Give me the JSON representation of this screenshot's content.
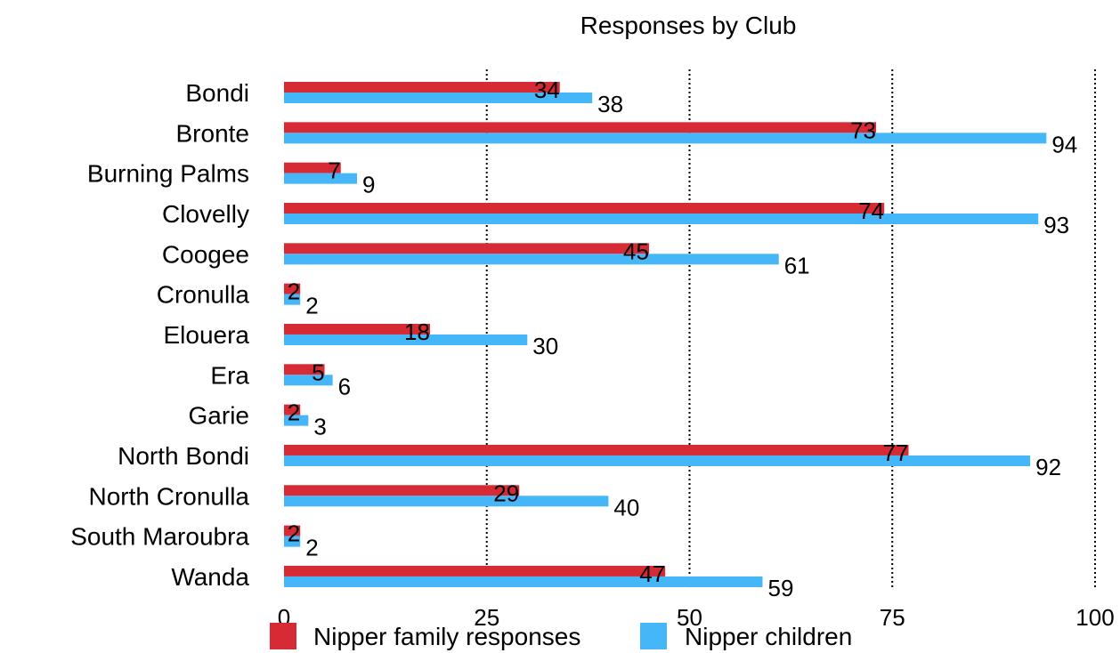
{
  "chart_data": {
    "type": "bar",
    "orientation": "horizontal",
    "title": "Responses by Club",
    "xlabel": "",
    "ylabel": "",
    "categories": [
      "Bondi",
      "Bronte",
      "Burning Palms",
      "Clovelly",
      "Coogee",
      "Cronulla",
      "Elouera",
      "Era",
      "Garie",
      "North Bondi",
      "North Cronulla",
      "South Maroubra",
      "Wanda"
    ],
    "series": [
      {
        "name": "Nipper family responses",
        "color": "#d62a35",
        "values": [
          34,
          73,
          7,
          74,
          45,
          2,
          18,
          5,
          2,
          77,
          29,
          2,
          47
        ]
      },
      {
        "name": "Nipper children",
        "color": "#45b6f7",
        "values": [
          38,
          94,
          9,
          93,
          61,
          2,
          30,
          6,
          3,
          92,
          40,
          2,
          59
        ]
      }
    ],
    "xlim": [
      0,
      100
    ],
    "xticks": [
      "0",
      "25",
      "50",
      "75",
      "100"
    ],
    "grid": "vertical dotted",
    "legend": "bottom"
  }
}
